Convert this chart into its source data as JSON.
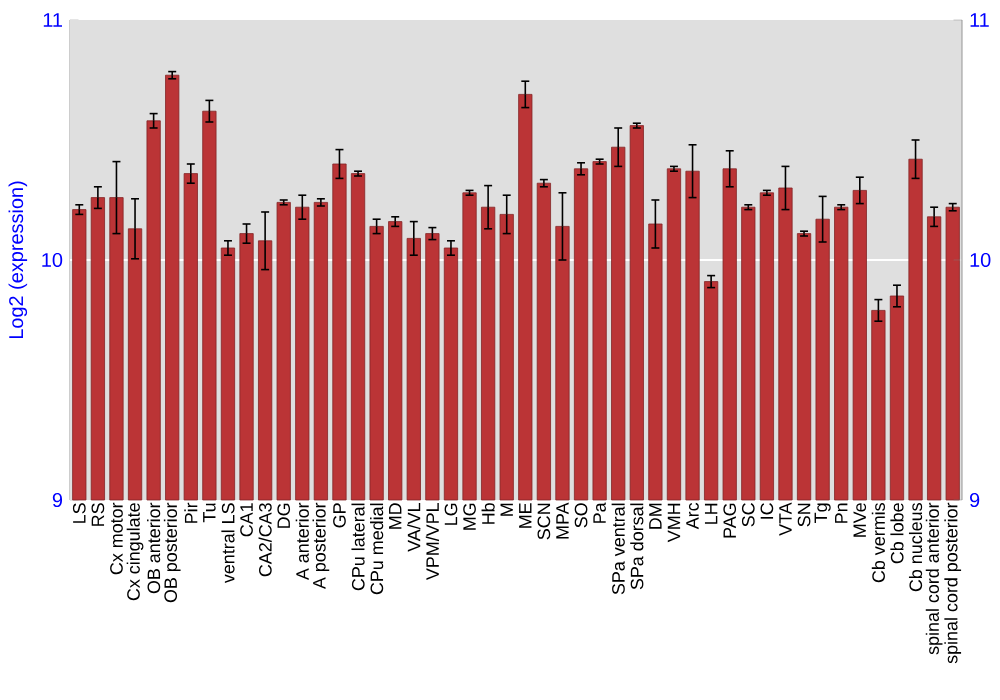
{
  "chart_data": {
    "type": "bar",
    "ylabel": "Log2 (expression)",
    "categories": [
      "LS",
      "RS",
      "Cx motor",
      "Cx cingulate",
      "OB anterior",
      "OB posterior",
      "Pir",
      "Tu",
      "ventral LS",
      "CA1",
      "CA2/CA3",
      "DG",
      "A anterior",
      "A posterior",
      "GP",
      "CPu lateral",
      "CPu medial",
      "MD",
      "VA/VL",
      "VPM/VPL",
      "LG",
      "MG",
      "Hb",
      "M",
      "ME",
      "SCN",
      "MPA",
      "SO",
      "Pa",
      "SPa ventral",
      "SPa dorsal",
      "DM",
      "VMH",
      "Arc",
      "LH",
      "PAG",
      "SC",
      "IC",
      "VTA",
      "SN",
      "Tg",
      "Pn",
      "MVe",
      "Cb vermis",
      "Cb lobe",
      "Cb nucleus",
      "spinal cord anterior",
      "spinal cord posterior"
    ],
    "values": [
      10.21,
      10.26,
      10.26,
      10.13,
      10.58,
      10.77,
      10.36,
      10.62,
      10.05,
      10.11,
      10.08,
      10.24,
      10.22,
      10.24,
      10.4,
      10.36,
      10.14,
      10.16,
      10.09,
      10.11,
      10.05,
      10.28,
      10.22,
      10.19,
      10.69,
      10.32,
      10.14,
      10.38,
      10.41,
      10.47,
      10.56,
      10.15,
      10.38,
      10.37,
      9.91,
      10.38,
      10.22,
      10.28,
      10.3,
      10.11,
      10.17,
      10.22,
      10.29,
      9.79,
      9.85,
      10.42,
      10.18,
      10.22
    ],
    "errors": [
      0.02,
      0.045,
      0.15,
      0.125,
      0.03,
      0.015,
      0.04,
      0.045,
      0.03,
      0.04,
      0.12,
      0.01,
      0.05,
      0.015,
      0.06,
      0.01,
      0.03,
      0.02,
      0.07,
      0.025,
      0.03,
      0.01,
      0.09,
      0.08,
      0.055,
      0.015,
      0.14,
      0.025,
      0.01,
      0.08,
      0.01,
      0.1,
      0.01,
      0.11,
      0.025,
      0.075,
      0.01,
      0.01,
      0.09,
      0.01,
      0.095,
      0.01,
      0.055,
      0.045,
      0.045,
      0.08,
      0.04,
      0.015
    ],
    "color": "#bb3436",
    "ylim": [
      9,
      11
    ],
    "yticks": [
      9,
      10,
      11
    ],
    "y2lim": [
      9,
      11
    ],
    "y2ticks": [
      9,
      10,
      11
    ],
    "ref_lines": [
      {
        "axis": "y",
        "value": 10,
        "color": "#ffffff"
      }
    ],
    "grid": false
  }
}
